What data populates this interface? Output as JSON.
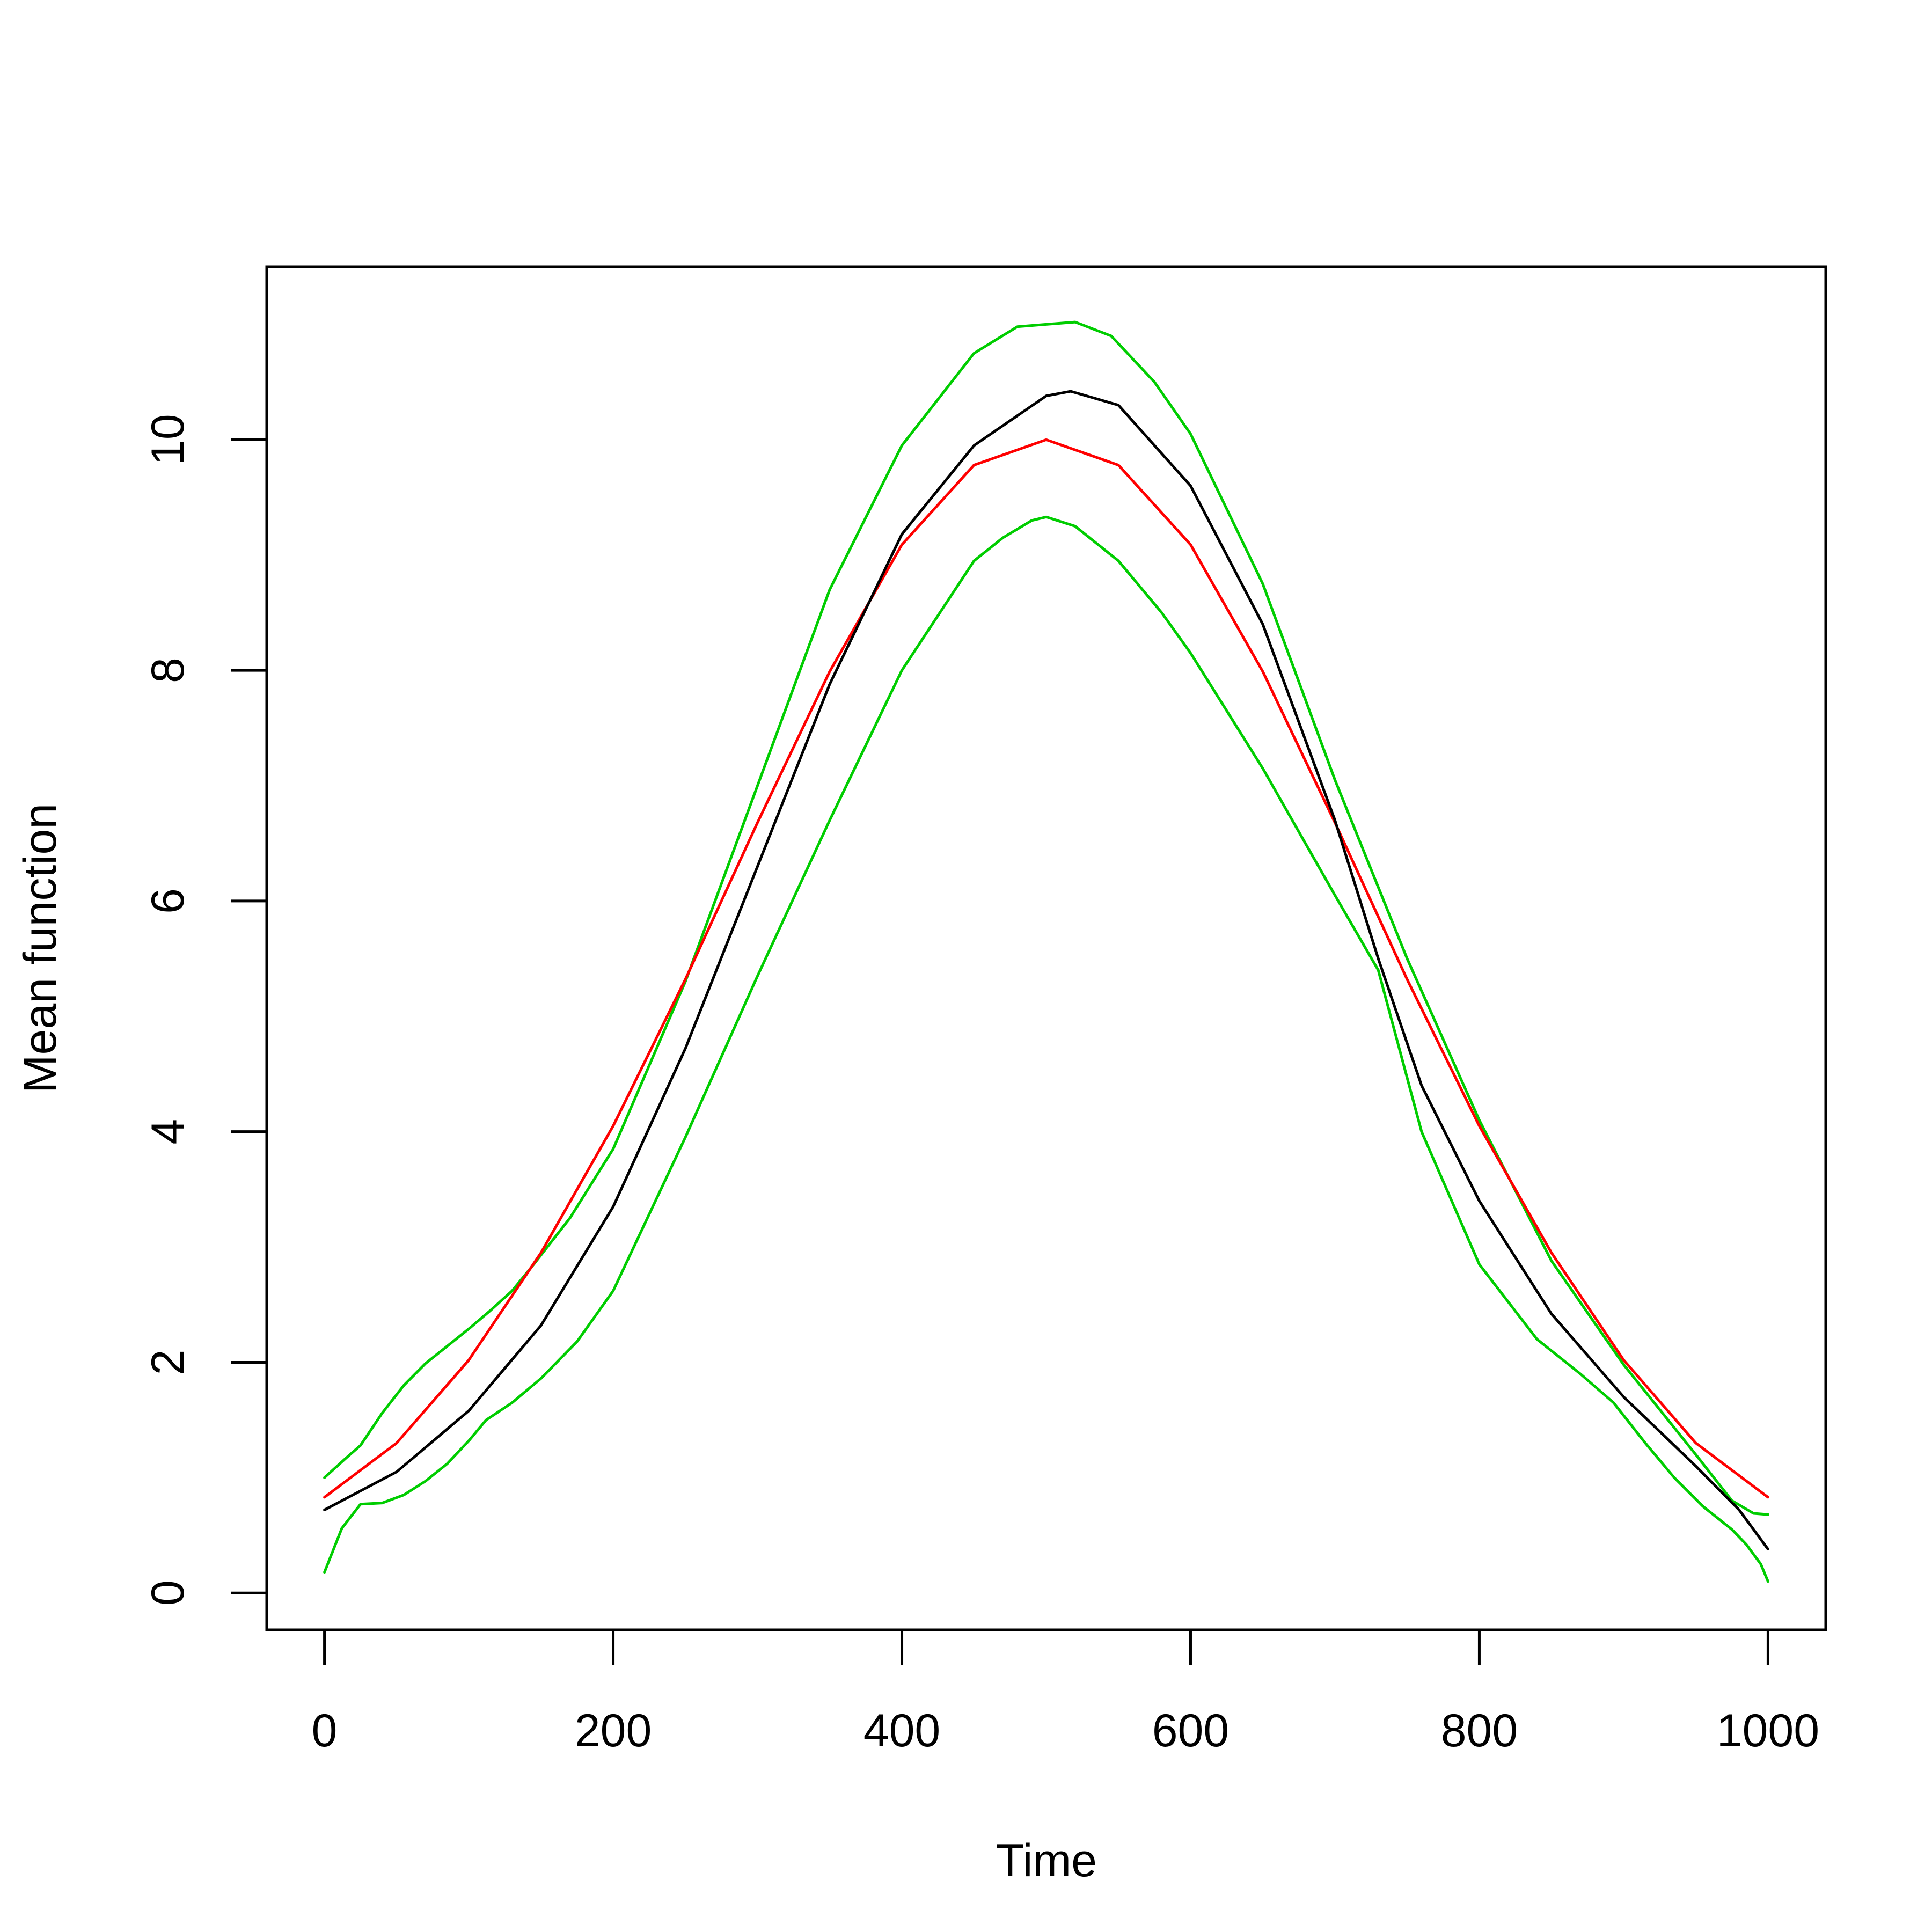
{
  "chart_data": {
    "type": "line",
    "title": "",
    "xlabel": "Time",
    "ylabel": "Mean function",
    "xlim": [
      -40,
      1040
    ],
    "ylim": [
      -0.32,
      11.5
    ],
    "x_ticks": [
      0,
      200,
      400,
      600,
      800,
      1000
    ],
    "y_ticks": [
      0,
      2,
      4,
      6,
      8,
      10
    ],
    "x_tick_labels": [
      "0",
      "200",
      "400",
      "600",
      "800",
      "1000"
    ],
    "y_tick_labels": [
      "0",
      "2",
      "4",
      "6",
      "8",
      "10"
    ],
    "grid": false,
    "legend": "none",
    "series": [
      {
        "color": "#00CD00",
        "x": [
          0,
          15,
          25,
          40,
          55,
          70,
          85,
          100,
          115,
          130,
          145,
          170,
          200,
          250,
          300,
          350,
          400,
          450,
          480,
          500,
          520,
          545,
          575,
          600,
          650,
          700,
          750,
          800,
          850,
          900,
          950,
          975,
          990,
          1000
        ],
        "y": [
          1.0,
          1.17,
          1.28,
          1.56,
          1.8,
          1.99,
          2.14,
          2.29,
          2.45,
          2.62,
          2.85,
          3.25,
          3.85,
          5.3,
          7.0,
          8.7,
          9.95,
          10.75,
          10.98,
          11.0,
          11.02,
          10.9,
          10.5,
          10.05,
          8.75,
          7.05,
          5.5,
          4.1,
          2.88,
          1.98,
          1.2,
          0.8,
          0.69,
          0.68
        ]
      },
      {
        "color": "#00CD00",
        "x": [
          0,
          12,
          25,
          40,
          55,
          70,
          85,
          100,
          112,
          130,
          150,
          175,
          200,
          250,
          300,
          350,
          400,
          450,
          470,
          490,
          500,
          520,
          550,
          580,
          600,
          650,
          700,
          730,
          760,
          800,
          840,
          870,
          893,
          915,
          935,
          955,
          975,
          985,
          995,
          1000
        ],
        "y": [
          0.18,
          0.56,
          0.77,
          0.78,
          0.85,
          0.97,
          1.12,
          1.32,
          1.5,
          1.65,
          1.86,
          2.18,
          2.62,
          3.95,
          5.35,
          6.7,
          8.0,
          8.95,
          9.15,
          9.3,
          9.33,
          9.25,
          8.95,
          8.5,
          8.15,
          7.15,
          6.05,
          5.4,
          4.0,
          2.85,
          2.2,
          1.9,
          1.65,
          1.3,
          1.0,
          0.75,
          0.55,
          0.42,
          0.25,
          0.1
        ]
      },
      {
        "color": "#FF0000",
        "x": [
          0,
          50,
          100,
          150,
          200,
          250,
          300,
          350,
          400,
          450,
          500,
          550,
          600,
          650,
          700,
          750,
          800,
          850,
          900,
          950,
          1000
        ],
        "y": [
          0.83,
          1.3,
          2.02,
          2.95,
          4.05,
          5.32,
          6.68,
          7.99,
          9.09,
          9.78,
          10.0,
          9.78,
          9.09,
          7.99,
          6.68,
          5.32,
          4.05,
          2.95,
          2.02,
          1.3,
          0.83
        ]
      },
      {
        "color": "#000000",
        "x": [
          0,
          50,
          100,
          150,
          200,
          250,
          300,
          350,
          400,
          450,
          500,
          517,
          550,
          600,
          650,
          700,
          730,
          760,
          800,
          850,
          900,
          950,
          980,
          1000
        ],
        "y": [
          0.72,
          1.05,
          1.58,
          2.32,
          3.35,
          4.72,
          6.3,
          7.88,
          9.18,
          9.95,
          10.38,
          10.42,
          10.3,
          9.6,
          8.4,
          6.7,
          5.5,
          4.4,
          3.4,
          2.42,
          1.7,
          1.1,
          0.72,
          0.38
        ]
      }
    ]
  }
}
